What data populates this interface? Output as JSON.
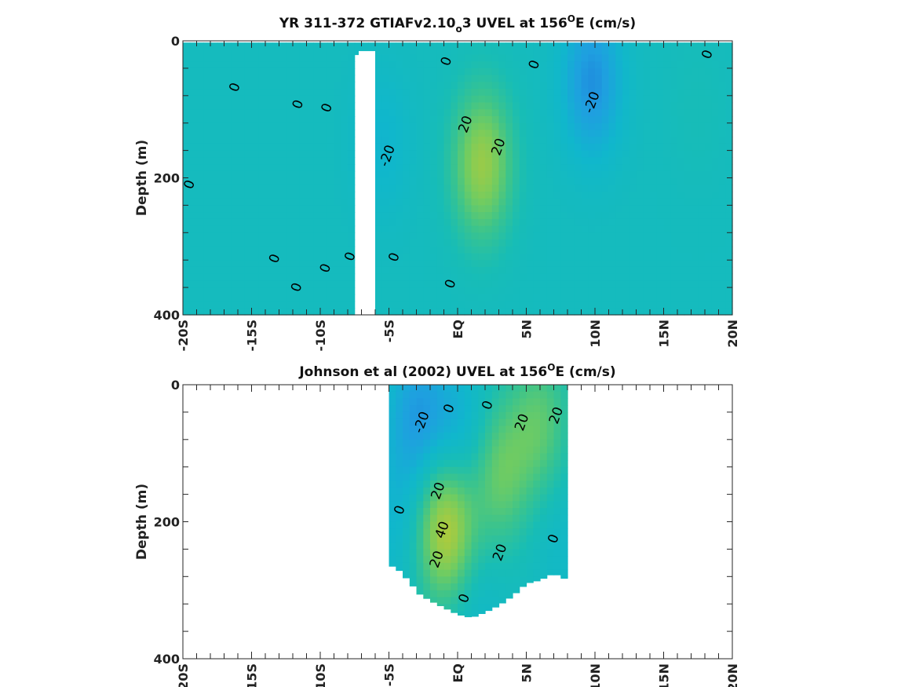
{
  "chart_data": [
    {
      "type": "heatmap",
      "title_prefix": "YR 311-372 GTIAFv2.10",
      "title_sub": "o",
      "title_mid": "3 UVEL at 156",
      "title_sup": "O",
      "title_suffix": "E (cm/s)",
      "ylabel": "Depth (m)",
      "xlabel": "",
      "xlim": [
        -20,
        20
      ],
      "ylim": [
        400,
        0
      ],
      "x_ticks": [
        -20,
        -15,
        -10,
        -5,
        0,
        5,
        10,
        15,
        20
      ],
      "x_tick_labels": [
        "-20S",
        "-15S",
        "-10S",
        "-5S",
        "EQ",
        "5N",
        "10N",
        "15N",
        "20N"
      ],
      "y_ticks": [
        0,
        200,
        400
      ],
      "y_tick_labels": [
        "0",
        "200",
        "400"
      ],
      "missing_band_lat": [
        -7.2,
        -6.0
      ],
      "features": [
        {
          "lat": 1.8,
          "depth": 180,
          "value": 35
        },
        {
          "lat": 9.8,
          "depth": 60,
          "value": -22
        },
        {
          "lat": -5.5,
          "depth": 150,
          "value": -8
        },
        {
          "lat": 17.5,
          "depth": 100,
          "value": 3
        }
      ],
      "contour_labels": [
        {
          "text": "0",
          "lat": -19.5,
          "depth": 210
        },
        {
          "text": "0",
          "lat": -16.2,
          "depth": 68
        },
        {
          "text": "0",
          "lat": -11.6,
          "depth": 93
        },
        {
          "text": "0",
          "lat": -9.5,
          "depth": 98
        },
        {
          "text": "0",
          "lat": -13.3,
          "depth": 318
        },
        {
          "text": "0",
          "lat": -11.7,
          "depth": 360
        },
        {
          "text": "0",
          "lat": -9.6,
          "depth": 332
        },
        {
          "text": "0",
          "lat": -7.8,
          "depth": 315
        },
        {
          "text": "-20",
          "lat": -5.1,
          "depth": 168
        },
        {
          "text": "0",
          "lat": -4.6,
          "depth": 316
        },
        {
          "text": "0",
          "lat": -0.8,
          "depth": 30
        },
        {
          "text": "20",
          "lat": 0.6,
          "depth": 122
        },
        {
          "text": "20",
          "lat": 3.0,
          "depth": 155
        },
        {
          "text": "0",
          "lat": -0.5,
          "depth": 355
        },
        {
          "text": "0",
          "lat": 5.6,
          "depth": 35
        },
        {
          "text": "-20",
          "lat": 9.8,
          "depth": 90
        },
        {
          "text": "0",
          "lat": 18.2,
          "depth": 20
        }
      ]
    },
    {
      "type": "heatmap",
      "title_prefix": "Johnson et al (2002) UVEL at 156",
      "title_sup": "O",
      "title_suffix": "E (cm/s)",
      "ylabel": "Depth (m)",
      "xlabel": "",
      "xlim": [
        -20,
        20
      ],
      "ylim": [
        400,
        0
      ],
      "x_ticks": [
        -20,
        -15,
        -10,
        -5,
        0,
        5,
        10,
        15,
        20
      ],
      "x_tick_labels": [
        "-20S",
        "-15S",
        "-10S",
        "-5S",
        "EQ",
        "5N",
        "10N",
        "15N",
        "20N"
      ],
      "y_ticks": [
        0,
        200,
        400
      ],
      "y_tick_labels": [
        "0",
        "200",
        "400"
      ],
      "data_lat_range": [
        -5.0,
        8.0
      ],
      "data_bottom_depth": [
        [
          -5.0,
          262
        ],
        [
          -4.3,
          270
        ],
        [
          -3.6,
          285
        ],
        [
          -2.8,
          305
        ],
        [
          -2.0,
          315
        ],
        [
          -1.0,
          325
        ],
        [
          0.0,
          335
        ],
        [
          1.0,
          340
        ],
        [
          2.0,
          332
        ],
        [
          3.0,
          322
        ],
        [
          4.0,
          308
        ],
        [
          5.0,
          290
        ],
        [
          6.0,
          285
        ],
        [
          7.0,
          275
        ],
        [
          8.0,
          285
        ]
      ],
      "features": [
        {
          "lat": -0.8,
          "depth": 210,
          "value": 45
        },
        {
          "lat": 3.0,
          "depth": 130,
          "value": 25
        },
        {
          "lat": 6.0,
          "depth": 60,
          "value": 22
        },
        {
          "lat": -2.8,
          "depth": 50,
          "value": -20
        },
        {
          "lat": 0.4,
          "depth": 90,
          "value": -15
        },
        {
          "lat": -4.3,
          "depth": 200,
          "value": -8
        },
        {
          "lat": 7.5,
          "depth": 210,
          "value": -5
        },
        {
          "lat": 1.0,
          "depth": 305,
          "value": -8
        }
      ],
      "contour_labels": [
        {
          "text": "-20",
          "lat": -2.6,
          "depth": 55
        },
        {
          "text": "0",
          "lat": -0.6,
          "depth": 35
        },
        {
          "text": "0",
          "lat": 2.2,
          "depth": 30
        },
        {
          "text": "20",
          "lat": 4.7,
          "depth": 55
        },
        {
          "text": "20",
          "lat": 7.2,
          "depth": 45
        },
        {
          "text": "20",
          "lat": -1.4,
          "depth": 155
        },
        {
          "text": "0",
          "lat": -4.2,
          "depth": 183
        },
        {
          "text": "40",
          "lat": -1.1,
          "depth": 212
        },
        {
          "text": "20",
          "lat": -1.5,
          "depth": 255
        },
        {
          "text": "20",
          "lat": 3.1,
          "depth": 245
        },
        {
          "text": "0",
          "lat": 7.0,
          "depth": 225
        },
        {
          "text": "0",
          "lat": 0.5,
          "depth": 312
        }
      ]
    }
  ],
  "colormap": [
    "#1f6fd8",
    "#1f9fe0",
    "#10b7cc",
    "#18bdb5",
    "#3cc48c",
    "#72cc60",
    "#a8cb40",
    "#c9c235"
  ]
}
